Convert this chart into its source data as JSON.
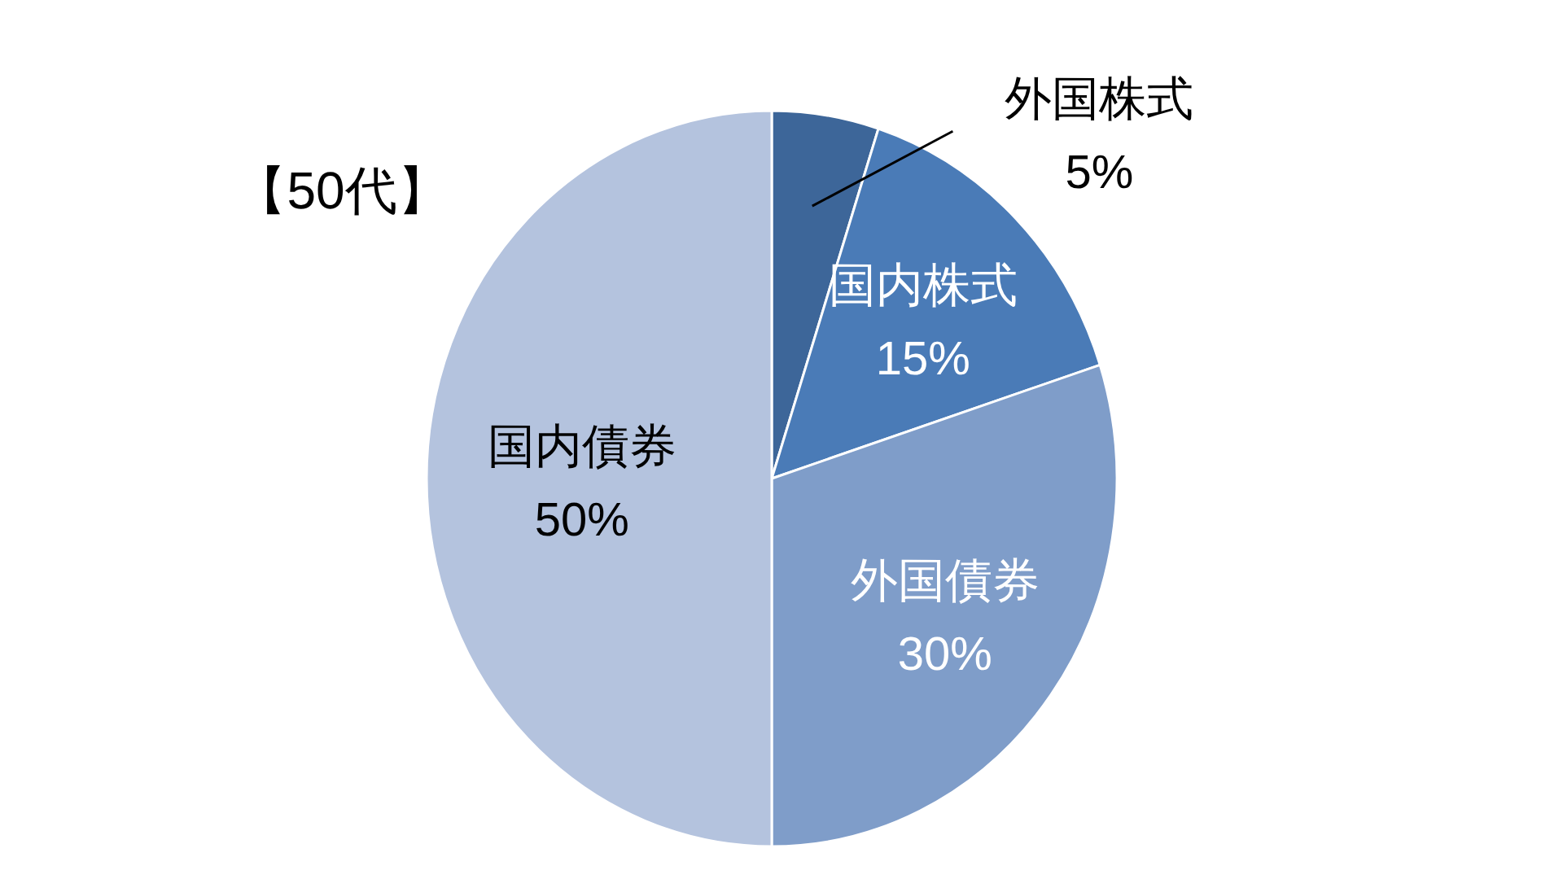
{
  "chart_data": {
    "type": "pie",
    "title": "【50代】",
    "categories": [
      "外国株式",
      "国内株式",
      "外国債券",
      "国内債券"
    ],
    "values": [
      5,
      15,
      30,
      50
    ],
    "colors": [
      "#3d6699",
      "#4a7bb7",
      "#7f9dc9",
      "#b4c3de"
    ],
    "value_labels": [
      "5%",
      "15%",
      "30%",
      "50%"
    ]
  }
}
